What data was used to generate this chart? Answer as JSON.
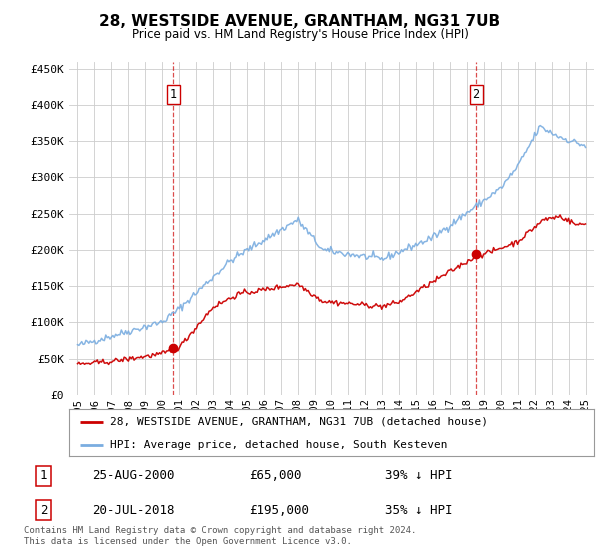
{
  "title": "28, WESTSIDE AVENUE, GRANTHAM, NG31 7UB",
  "subtitle": "Price paid vs. HM Land Registry's House Price Index (HPI)",
  "fig_bg": "#ffffff",
  "plot_bg": "#ffffff",
  "xlim": [
    1994.5,
    2025.5
  ],
  "ylim": [
    0,
    460000
  ],
  "yticks": [
    0,
    50000,
    100000,
    150000,
    200000,
    250000,
    300000,
    350000,
    400000,
    450000
  ],
  "ytick_labels": [
    "£0",
    "£50K",
    "£100K",
    "£150K",
    "£200K",
    "£250K",
    "£300K",
    "£350K",
    "£400K",
    "£450K"
  ],
  "xtick_years": [
    1995,
    1996,
    1997,
    1998,
    1999,
    2000,
    2001,
    2002,
    2003,
    2004,
    2005,
    2006,
    2007,
    2008,
    2009,
    2010,
    2011,
    2012,
    2013,
    2014,
    2015,
    2016,
    2017,
    2018,
    2019,
    2020,
    2021,
    2022,
    2023,
    2024,
    2025
  ],
  "sale1_x": 2000.65,
  "sale1_y": 65000,
  "sale2_x": 2018.54,
  "sale2_y": 195000,
  "vline1_x": 2000.65,
  "vline2_x": 2018.54,
  "red_line_color": "#cc0000",
  "blue_line_color": "#7aade0",
  "grid_color": "#cccccc",
  "label_box_color": "#cc0000",
  "legend_label_red": "28, WESTSIDE AVENUE, GRANTHAM, NG31 7UB (detached house)",
  "legend_label_blue": "HPI: Average price, detached house, South Kesteven",
  "table_row1": [
    "1",
    "25-AUG-2000",
    "£65,000",
    "39% ↓ HPI"
  ],
  "table_row2": [
    "2",
    "20-JUL-2018",
    "£195,000",
    "35% ↓ HPI"
  ],
  "footer": "Contains HM Land Registry data © Crown copyright and database right 2024.\nThis data is licensed under the Open Government Licence v3.0."
}
